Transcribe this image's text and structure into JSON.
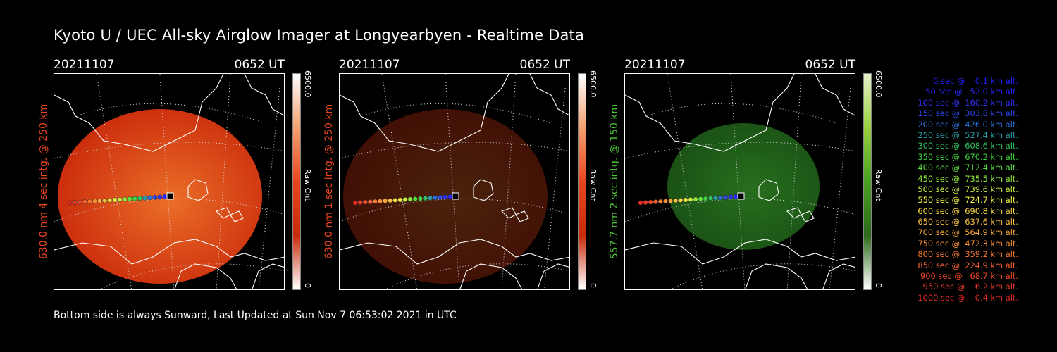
{
  "title": "Kyoto U / UEC All-sky Airglow Imager at Longyearbyen - Realtime Data",
  "footer": "Bottom side is always Sunward, Last Updated at Sun Nov  7 06:53:02 2021 in UTC",
  "colors": {
    "red": "#e8461e",
    "green": "#4ec43a",
    "background": "#000000"
  },
  "panels": [
    {
      "date": "20211107",
      "time": "0652 UT",
      "channel_label": "630.0 nm 4 sec intg. @ 250 km",
      "label_color": "#e8461e",
      "colorbar_max": "6500.0",
      "colorbar_min": "0",
      "colorbar_unit": "Raw Cnt",
      "brightness": 1.0,
      "tint": "red"
    },
    {
      "date": "20211107",
      "time": "0652 UT",
      "channel_label": "630.0 nm 1 sec intg. @ 250 km",
      "label_color": "#e8461e",
      "colorbar_max": "6500.0",
      "colorbar_min": "0",
      "colorbar_unit": "Raw Cnt",
      "brightness": 0.32,
      "tint": "red"
    },
    {
      "date": "20211107",
      "time": "0652 UT",
      "channel_label": "557.7 nm 2 sec intg. @ 150 km",
      "label_color": "#4ec43a",
      "colorbar_max": "6500.0",
      "colorbar_min": "0",
      "colorbar_unit": "Raw Cnt",
      "brightness": 0.55,
      "tint": "green"
    }
  ],
  "legend": [
    {
      "text": "   0 sec @    0.1 km alt.",
      "color": "#2020ff"
    },
    {
      "text": "  50 sec @   52.0 km alt.",
      "color": "#2828ff"
    },
    {
      "text": " 100 sec @  160.2 km alt.",
      "color": "#3030f0"
    },
    {
      "text": " 150 sec @  303.8 km alt.",
      "color": "#2a48e8"
    },
    {
      "text": " 200 sec @  426.0 km alt.",
      "color": "#2a70d8"
    },
    {
      "text": " 250 sec @  527.4 km alt.",
      "color": "#2a9aa8"
    },
    {
      "text": " 300 sec @  608.6 km alt.",
      "color": "#30c060"
    },
    {
      "text": " 350 sec @  670.2 km alt.",
      "color": "#40d040"
    },
    {
      "text": " 400 sec @  712.4 km alt.",
      "color": "#58e040"
    },
    {
      "text": " 450 sec @  735.5 km alt.",
      "color": "#90e840"
    },
    {
      "text": " 500 sec @  739.6 km alt.",
      "color": "#c8f040"
    },
    {
      "text": " 550 sec @  724.7 km alt.",
      "color": "#f0f040"
    },
    {
      "text": " 600 sec @  690.8 km alt.",
      "color": "#f8d840"
    },
    {
      "text": " 650 sec @  637.6 km alt.",
      "color": "#f8c040"
    },
    {
      "text": " 700 sec @  564.9 km alt.",
      "color": "#f8a838"
    },
    {
      "text": " 750 sec @  472.3 km alt.",
      "color": "#f89038"
    },
    {
      "text": " 800 sec @  359.2 km alt.",
      "color": "#f87830"
    },
    {
      "text": " 850 sec @  224.9 km alt.",
      "color": "#f86030"
    },
    {
      "text": " 900 sec @   68.7 km alt.",
      "color": "#f04828"
    },
    {
      "text": " 950 sec @    6.2 km alt.",
      "color": "#e83824"
    },
    {
      "text": "1000 sec @    0.4 km alt.",
      "color": "#e02820"
    }
  ]
}
